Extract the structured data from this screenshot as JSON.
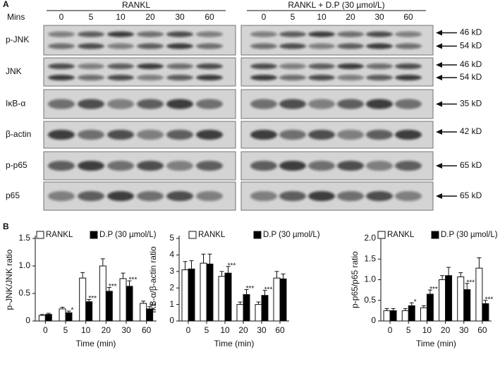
{
  "panel_a": {
    "label": "A",
    "groups": [
      "RANKL",
      "RANKL + D.P (30 µmol/L)"
    ],
    "time_label": "Mins",
    "times": [
      "0",
      "5",
      "10",
      "20",
      "30",
      "60"
    ],
    "rows": [
      {
        "name": "p-JNK",
        "markers": [
          "46 kD",
          "54 kD"
        ]
      },
      {
        "name": "JNK",
        "markers": [
          "46 kD",
          "54 kD"
        ]
      },
      {
        "name": "IκB-α",
        "markers": [
          "35 kD"
        ]
      },
      {
        "name": "β-actin",
        "markers": [
          "42 kD"
        ]
      },
      {
        "name": "p-p65",
        "markers": [
          "65 kD"
        ]
      },
      {
        "name": "p65",
        "markers": [
          "65 kD"
        ]
      }
    ]
  },
  "panel_b": {
    "label": "B"
  },
  "chart_data": [
    {
      "type": "bar",
      "ylabel": "p-JNK/JNK ratio",
      "xlabel": "Time (min)",
      "categories": [
        "0",
        "5",
        "10",
        "20",
        "30",
        "60"
      ],
      "ylim": [
        0,
        1.5
      ],
      "yticks": [
        0,
        0.5,
        {
          "value": 1,
          "label": "1.0"
        },
        1.5
      ],
      "series": [
        {
          "name": "RANKL",
          "color": "#ffffff",
          "values": [
            0.1,
            0.22,
            0.78,
            1.0,
            0.77,
            0.32
          ],
          "errors": [
            0.02,
            0.03,
            0.1,
            0.13,
            0.1,
            0.04
          ]
        },
        {
          "name": "D.P (30 µmol/L)",
          "color": "#000000",
          "values": [
            0.12,
            0.15,
            0.35,
            0.54,
            0.63,
            0.22
          ],
          "errors": [
            0.02,
            0.03,
            0.04,
            0.07,
            0.1,
            0.04
          ],
          "annotations": [
            null,
            "*",
            "***",
            "***",
            "***",
            "**"
          ]
        }
      ]
    },
    {
      "type": "bar",
      "ylabel": "IκB-α/β-actin ratio",
      "xlabel": "Time (min)",
      "categories": [
        "0",
        "5",
        "10",
        "20",
        "30",
        "60"
      ],
      "ylim": [
        0,
        5
      ],
      "yticks": [
        0,
        1,
        2,
        3,
        4,
        5
      ],
      "series": [
        {
          "name": "RANKL",
          "color": "#ffffff",
          "values": [
            3.1,
            3.5,
            2.7,
            1.0,
            1.0,
            2.6
          ],
          "errors": [
            0.5,
            0.55,
            0.3,
            0.15,
            0.15,
            0.4
          ]
        },
        {
          "name": "D.P (30 µmol/L)",
          "color": "#000000",
          "values": [
            3.15,
            3.45,
            2.9,
            1.6,
            1.55,
            2.55
          ],
          "errors": [
            0.5,
            0.6,
            0.4,
            0.3,
            0.3,
            0.3
          ],
          "annotations": [
            null,
            null,
            "***",
            "***",
            "***",
            null
          ]
        }
      ]
    },
    {
      "type": "bar",
      "ylabel": "p-p65/p65 ratio",
      "xlabel": "Time (min)",
      "categories": [
        "0",
        "5",
        "10",
        "20",
        "30",
        "60"
      ],
      "ylim": [
        0,
        2
      ],
      "yticks": [
        0,
        0.5,
        {
          "value": 1,
          "label": "1.0"
        },
        1.5,
        {
          "value": 2,
          "label": "2.0"
        }
      ],
      "series": [
        {
          "name": "RANKL",
          "color": "#ffffff",
          "values": [
            0.25,
            0.25,
            0.32,
            1.0,
            1.07,
            1.28
          ],
          "errors": [
            0.05,
            0.05,
            0.05,
            0.1,
            0.1,
            0.25
          ]
        },
        {
          "name": "D.P (30 µmol/L)",
          "color": "#000000",
          "values": [
            0.25,
            0.37,
            0.65,
            1.1,
            0.76,
            0.42
          ],
          "errors": [
            0.05,
            0.07,
            0.1,
            0.2,
            0.15,
            0.08
          ],
          "annotations": [
            null,
            "*",
            "***",
            null,
            "***",
            "***"
          ]
        }
      ]
    }
  ]
}
